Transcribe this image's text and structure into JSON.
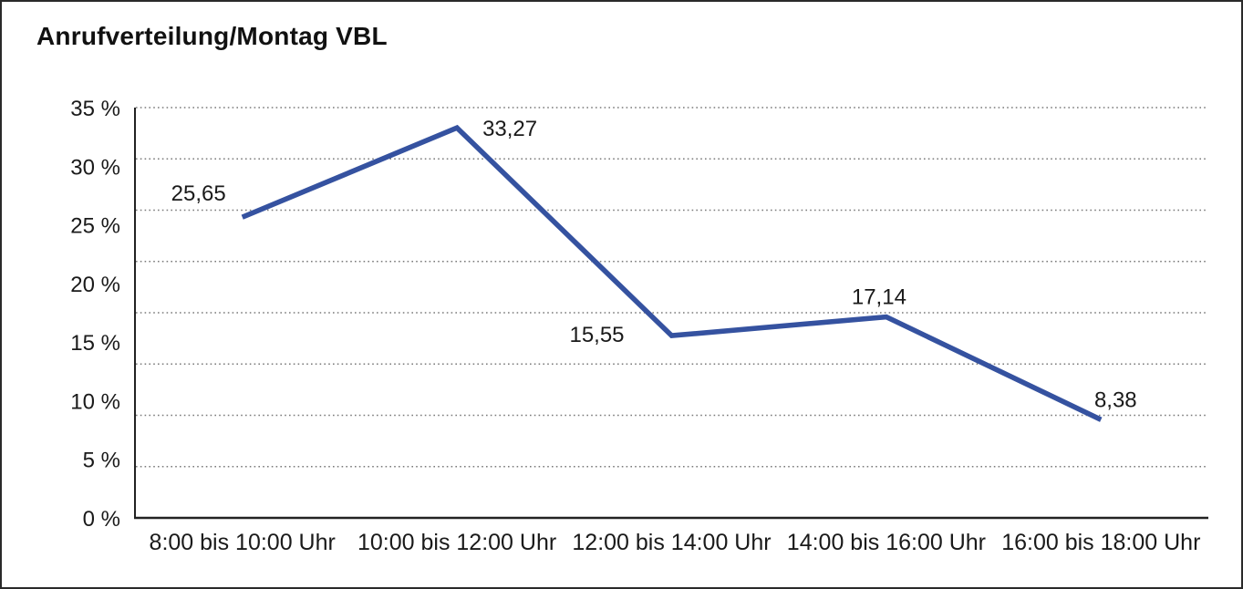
{
  "window": {
    "background": "#ffffff",
    "border_color": "#2a2a2a"
  },
  "chart_data": {
    "type": "line",
    "title": "Anrufverteilung/Montag VBL",
    "categories": [
      "8:00 bis 10:00 Uhr",
      "10:00 bis 12:00 Uhr",
      "12:00 bis 14:00 Uhr",
      "14:00 bis 16:00 Uhr",
      "16:00 bis 18:00 Uhr"
    ],
    "values": [
      25.65,
      33.27,
      15.55,
      17.14,
      8.38
    ],
    "point_labels": [
      "25,65",
      "33,27",
      "15,55",
      "17,14",
      "8,38"
    ],
    "y_ticks": [
      "35 %",
      "30 %",
      "25 %",
      "20 %",
      "15 %",
      "10 %",
      "5 %",
      "0 %"
    ],
    "y_tick_values": [
      35,
      30,
      25,
      20,
      15,
      10,
      5,
      0
    ],
    "ylim": [
      0,
      35
    ],
    "xlabel": "",
    "ylabel": "",
    "grid": "dotted-horizontal",
    "grid_divisions": 8,
    "legend": "none",
    "line_color": "#3552A0",
    "axis_color": "#222222",
    "gridline_color": "#7a7a7a",
    "text_color": "#1a1a1a"
  }
}
